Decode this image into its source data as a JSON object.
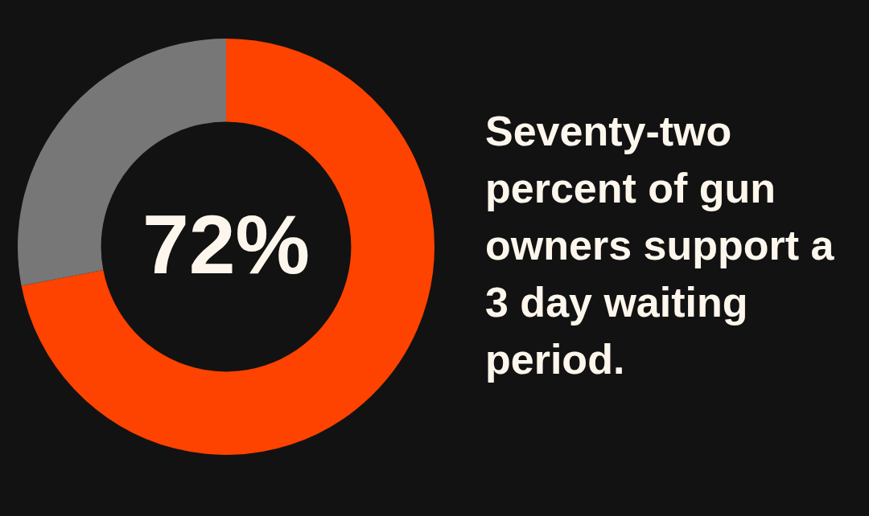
{
  "chart_data": {
    "type": "donut",
    "title": "Seventy-two percent of gun owners support a 3 day waiting period.",
    "categories": [
      null,
      null
    ],
    "values": [
      72,
      28
    ],
    "colors": [
      "#fe4200",
      "#777777"
    ],
    "value_labels": [
      "72%",
      null
    ],
    "legend": false
  }
}
